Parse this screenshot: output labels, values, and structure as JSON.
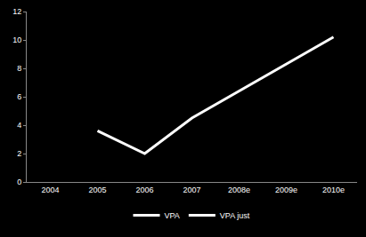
{
  "chart_data": {
    "type": "line",
    "categories": [
      "2004",
      "2005",
      "2006",
      "2007",
      "2008e",
      "2009e",
      "2010e"
    ],
    "series": [
      {
        "name": "VPA",
        "color": "#ffffff",
        "values": [
          null,
          3.6,
          2.0,
          4.5,
          6.4,
          8.3,
          10.2
        ]
      },
      {
        "name": "VPA just",
        "color": "#ffffff",
        "values": [
          null,
          null,
          null,
          null,
          null,
          null,
          null
        ]
      }
    ],
    "ylim": [
      0,
      12
    ],
    "yticks": [
      0,
      2,
      4,
      6,
      8,
      10,
      12
    ],
    "grid": false,
    "legend": "bottom"
  }
}
